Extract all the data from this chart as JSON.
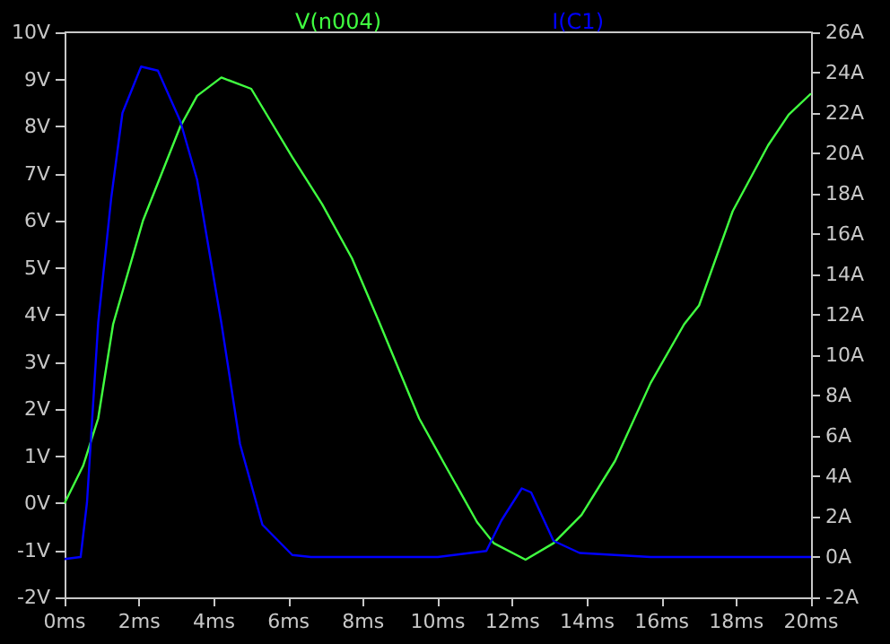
{
  "chart_data": {
    "type": "line",
    "legend": "top",
    "grid": false,
    "marker": "none",
    "line_style": "solid",
    "xlim": [
      0,
      20
    ],
    "ylim": [
      -2,
      10
    ],
    "y2lim": [
      -2,
      26
    ],
    "xticks": [
      {
        "value": 0,
        "label": "0ms"
      },
      {
        "value": 2,
        "label": "2ms"
      },
      {
        "value": 4,
        "label": "4ms"
      },
      {
        "value": 6,
        "label": "6ms"
      },
      {
        "value": 8,
        "label": "8ms"
      },
      {
        "value": 10,
        "label": "10ms"
      },
      {
        "value": 12,
        "label": "12ms"
      },
      {
        "value": 14,
        "label": "14ms"
      },
      {
        "value": 16,
        "label": "16ms"
      },
      {
        "value": 18,
        "label": "18ms"
      },
      {
        "value": 20,
        "label": "20ms"
      }
    ],
    "yticks": [
      {
        "value": -2,
        "label": "-2V"
      },
      {
        "value": -1,
        "label": "-1V"
      },
      {
        "value": 0,
        "label": "0V"
      },
      {
        "value": 1,
        "label": "1V"
      },
      {
        "value": 2,
        "label": "2V"
      },
      {
        "value": 3,
        "label": "3V"
      },
      {
        "value": 4,
        "label": "4V"
      },
      {
        "value": 5,
        "label": "5V"
      },
      {
        "value": 6,
        "label": "6V"
      },
      {
        "value": 7,
        "label": "7V"
      },
      {
        "value": 8,
        "label": "8V"
      },
      {
        "value": 9,
        "label": "9V"
      },
      {
        "value": 10,
        "label": "10V"
      }
    ],
    "y2ticks": [
      {
        "value": -2,
        "label": "-2A"
      },
      {
        "value": 0,
        "label": "0A"
      },
      {
        "value": 2,
        "label": "2A"
      },
      {
        "value": 4,
        "label": "4A"
      },
      {
        "value": 6,
        "label": "6A"
      },
      {
        "value": 8,
        "label": "8A"
      },
      {
        "value": 10,
        "label": "10A"
      },
      {
        "value": 12,
        "label": "12A"
      },
      {
        "value": 14,
        "label": "14A"
      },
      {
        "value": 16,
        "label": "16A"
      },
      {
        "value": 18,
        "label": "18A"
      },
      {
        "value": 20,
        "label": "20A"
      },
      {
        "value": 22,
        "label": "22A"
      },
      {
        "value": 24,
        "label": "24A"
      },
      {
        "value": 26,
        "label": "26A"
      }
    ],
    "series": [
      {
        "name": "V(n004)",
        "color": "#40ff40",
        "x": [
          0,
          0.5,
          0.9,
          1.3,
          2.1,
          2.6,
          3.1,
          3.55,
          4.2,
          5.0,
          6.1,
          6.9,
          7.7,
          8.4,
          9.5,
          10.2,
          11.05,
          11.5,
          12.35,
          13.1,
          13.85,
          14.75,
          15.7,
          16.6,
          17.0,
          17.9,
          18.85,
          19.4,
          20
        ],
        "values": [
          0,
          0.8,
          1.8,
          3.8,
          6.0,
          7.0,
          8.0,
          8.65,
          9.04,
          8.8,
          7.35,
          6.35,
          5.2,
          3.9,
          1.8,
          0.8,
          -0.4,
          -0.85,
          -1.2,
          -0.85,
          -0.25,
          0.9,
          2.55,
          3.8,
          4.2,
          6.2,
          7.6,
          8.25,
          8.7
        ]
      },
      {
        "name": "I(C1)",
        "color": "#0000ff",
        "axis": "y2",
        "x": [
          0,
          0.43,
          0.6,
          0.9,
          1.25,
          1.55,
          2.05,
          2.5,
          3.1,
          3.55,
          4.2,
          4.7,
          5.3,
          6.1,
          6.6,
          10,
          11.3,
          11.7,
          12.25,
          12.5,
          13.1,
          13.8,
          15.7,
          20
        ],
        "values": [
          -0.1,
          0,
          2.7,
          11.6,
          17.8,
          22,
          24.3,
          24.1,
          21.6,
          18.7,
          11.6,
          5.6,
          1.6,
          0.1,
          0,
          0,
          0.3,
          1.8,
          3.4,
          3.2,
          0.8,
          0.2,
          0,
          0
        ]
      }
    ]
  }
}
